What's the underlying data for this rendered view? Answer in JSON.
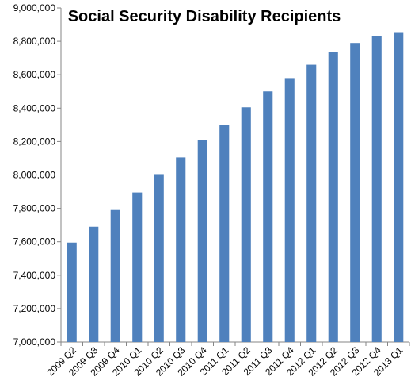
{
  "chart_data": {
    "type": "bar",
    "title": "Social Security Disability Recipients",
    "xlabel": "",
    "ylabel": "",
    "ylim": [
      7000000,
      9000000
    ],
    "ytick_step": 200000,
    "yticks": [
      "7,000,000",
      "7,200,000",
      "7,400,000",
      "7,600,000",
      "7,800,000",
      "8,000,000",
      "8,200,000",
      "8,400,000",
      "8,600,000",
      "8,800,000",
      "9,000,000"
    ],
    "categories": [
      "2009 Q2",
      "2009 Q3",
      "2009 Q4",
      "2010 Q1",
      "2010 Q2",
      "2010 Q3",
      "2010 Q4",
      "2011 Q1",
      "2011 Q2",
      "2011 Q3",
      "2011 Q4",
      "2012 Q1",
      "2012 Q2",
      "2012 Q3",
      "2012 Q4",
      "2013 Q1"
    ],
    "values": [
      7595000,
      7690000,
      7790000,
      7895000,
      8005000,
      8105000,
      8210000,
      8300000,
      8405000,
      8500000,
      8580000,
      8660000,
      8735000,
      8790000,
      8830000,
      8855000
    ],
    "bar_color": "#4F81BD",
    "axis_color": "#868686",
    "grid": false,
    "legend": "none"
  }
}
